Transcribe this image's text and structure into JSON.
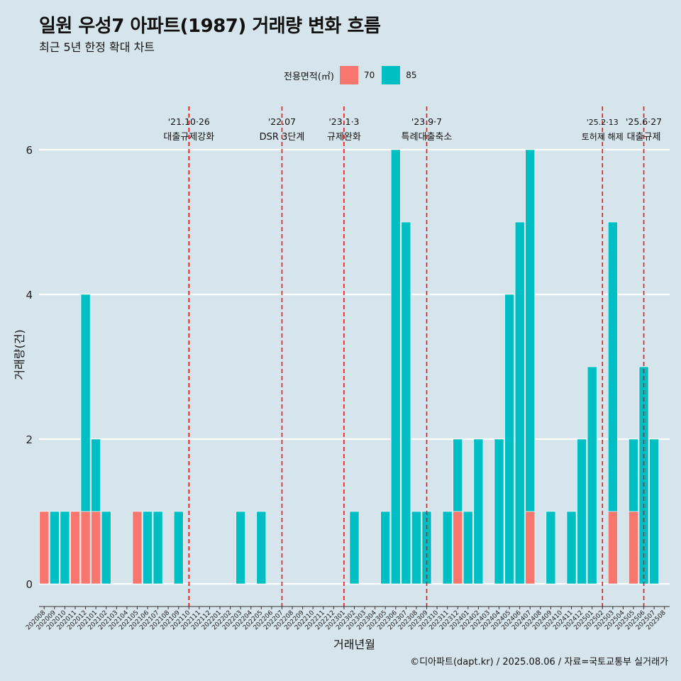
{
  "title": "일원 우성7 아파트(1987) 거래량 변화 흐름",
  "subtitle": "최근 5년 한정 확대 차트",
  "caption": "©디아파트(dapt.kr) / 2025.08.06 / 자료=국토교통부 실거래가",
  "legend": {
    "title": "전용면적(㎡)",
    "items": [
      {
        "label": "70",
        "color": "#f8766d"
      },
      {
        "label": "85",
        "color": "#00bfc4"
      }
    ]
  },
  "chart_data": {
    "type": "bar",
    "stacked": true,
    "xlabel": "거래년월",
    "ylabel": "거래량(건)",
    "ylim": [
      0,
      6.3
    ],
    "yticks": [
      0,
      2,
      4,
      6
    ],
    "grid": true,
    "legend_position": "top",
    "categories": [
      "202008",
      "202009",
      "202010",
      "202011",
      "202012",
      "202101",
      "202102",
      "202103",
      "202104",
      "202105",
      "202106",
      "202107",
      "202108",
      "202109",
      "202110",
      "202111",
      "202112",
      "202201",
      "202202",
      "202203",
      "202204",
      "202205",
      "202206",
      "202207",
      "202208",
      "202209",
      "202210",
      "202211",
      "202212",
      "202301",
      "202302",
      "202303",
      "202304",
      "202305",
      "202306",
      "202307",
      "202308",
      "202309",
      "202310",
      "202311",
      "202312",
      "202401",
      "202402",
      "202403",
      "202404",
      "202405",
      "202406",
      "202407",
      "202408",
      "202409",
      "202410",
      "202411",
      "202412",
      "202501",
      "202502",
      "202503",
      "202504",
      "202505",
      "202506",
      "202507",
      "202508"
    ],
    "series": [
      {
        "name": "70",
        "color": "#f8766d",
        "values": [
          1,
          0,
          0,
          1,
          1,
          1,
          0,
          0,
          0,
          1,
          0,
          0,
          0,
          0,
          0,
          0,
          0,
          0,
          0,
          0,
          0,
          0,
          0,
          0,
          0,
          0,
          0,
          0,
          0,
          0,
          0,
          0,
          0,
          0,
          0,
          0,
          0,
          0,
          0,
          0,
          1,
          0,
          0,
          0,
          0,
          0,
          0,
          1,
          0,
          0,
          0,
          0,
          0,
          0,
          0,
          1,
          0,
          1,
          0,
          0,
          0
        ]
      },
      {
        "name": "85",
        "color": "#00bfc4",
        "values": [
          0,
          1,
          1,
          0,
          3,
          1,
          1,
          0,
          0,
          0,
          1,
          1,
          0,
          1,
          0,
          0,
          0,
          0,
          0,
          1,
          0,
          1,
          0,
          0,
          0,
          0,
          0,
          0,
          0,
          0,
          1,
          0,
          0,
          1,
          6,
          5,
          1,
          1,
          0,
          1,
          1,
          1,
          2,
          0,
          2,
          4,
          5,
          5,
          0,
          1,
          0,
          1,
          2,
          3,
          0,
          4,
          0,
          1,
          3,
          2,
          0
        ]
      }
    ],
    "events": [
      {
        "month": "202110",
        "date": "'21.10·26",
        "label": "대출규제강화"
      },
      {
        "month": "202207",
        "date": "'22.07",
        "label": "DSR 3단계"
      },
      {
        "month": "202301",
        "date": "'23.1·3",
        "label": "규제완화"
      },
      {
        "month": "202309",
        "date": "'23.9·7",
        "label": "특례대출축소"
      },
      {
        "month": "202502",
        "date": "'25.2·13",
        "label": "토허제 해제"
      },
      {
        "month": "202506",
        "date": "'25.6·27",
        "label": "대출규제"
      }
    ]
  }
}
